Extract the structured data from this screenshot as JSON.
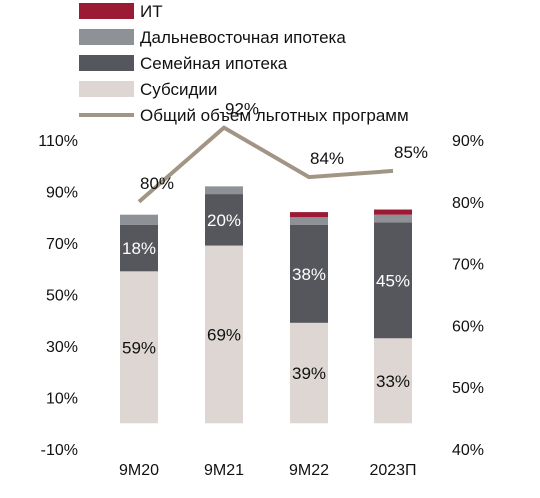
{
  "chart_data": {
    "type": "bar",
    "stacked": true,
    "categories": [
      "9М20",
      "9М21",
      "9М22",
      "2023П"
    ],
    "series": [
      {
        "name": "Субсидии",
        "values": [
          59,
          69,
          39,
          33
        ],
        "color": "#ddd6d2",
        "label_color": "#111111"
      },
      {
        "name": "Семейная ипотека",
        "values": [
          18,
          20,
          38,
          45
        ],
        "color": "#55575c",
        "label_color": "#ffffff"
      },
      {
        "name": "Дальневосточная ипотека",
        "values": [
          4,
          3,
          3,
          3
        ],
        "color": "#8e9195"
      },
      {
        "name": "ИТ",
        "values": [
          0,
          0,
          2,
          2
        ],
        "color": "#9b1b34"
      }
    ],
    "line": {
      "name": "Общий объем льготных программ",
      "values": [
        80,
        92,
        84,
        85
      ],
      "labels": [
        "80%",
        "92%",
        "84%",
        "85%"
      ],
      "color": "#a39585",
      "axis": "right"
    },
    "bar_labels": {
      "Субсидии": [
        "59%",
        "69%",
        "39%",
        "33%"
      ],
      "Семейная ипотека": [
        "18%",
        "20%",
        "38%",
        "45%"
      ]
    },
    "legend_order": [
      "ИТ",
      "Дальневосточная ипотека",
      "Семейная ипотека",
      "Субсидии",
      "Общий объем льготных программ"
    ],
    "left_axis": {
      "min": -10,
      "max": 110,
      "ticks": [
        -10,
        10,
        30,
        50,
        70,
        90,
        110
      ],
      "tick_labels": [
        "-10%",
        "10%",
        "30%",
        "50%",
        "70%",
        "90%",
        "110%"
      ]
    },
    "right_axis": {
      "min": 40,
      "max": 90,
      "ticks": [
        40,
        50,
        60,
        70,
        80,
        90
      ],
      "tick_labels": [
        "40%",
        "50%",
        "60%",
        "70%",
        "80%",
        "90%"
      ]
    },
    "legend_position": "top",
    "grid": false
  }
}
